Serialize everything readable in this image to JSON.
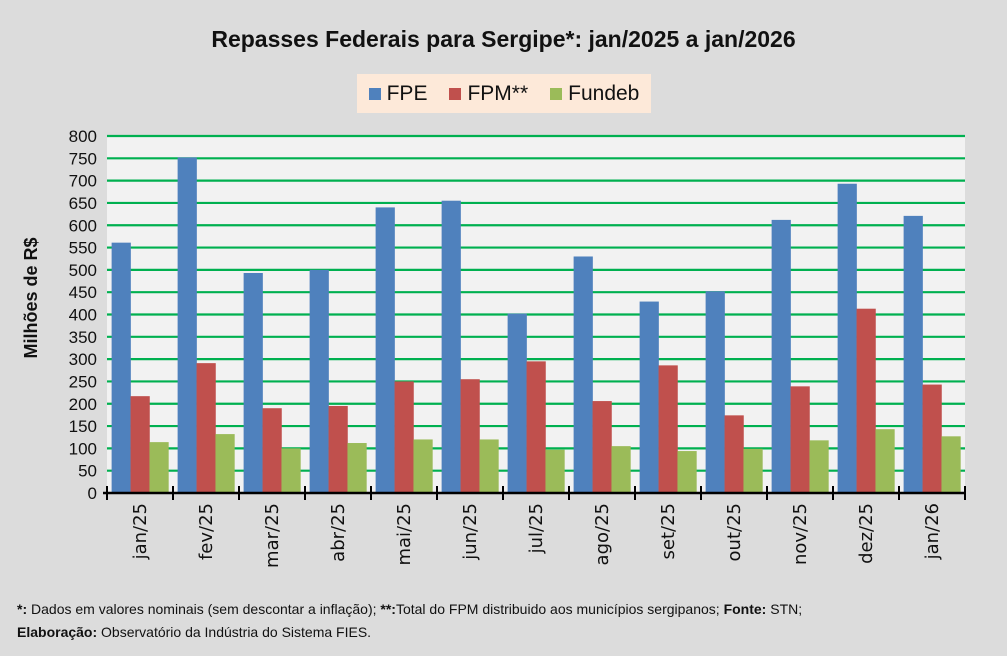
{
  "chart_data": {
    "type": "bar",
    "title": "Repasses Federais para Sergipe*: jan/2025 a jan/2026",
    "xlabel": "",
    "ylabel": "Milhões de R$",
    "ylim": [
      0,
      800
    ],
    "yticks": [
      0,
      50,
      100,
      150,
      200,
      250,
      300,
      350,
      400,
      450,
      500,
      550,
      600,
      650,
      700,
      750,
      800
    ],
    "grid": true,
    "legend_position": "top-center",
    "categories": [
      "jan/25",
      "fev/25",
      "mar/25",
      "abr/25",
      "mai/25",
      "jun/25",
      "jul/25",
      "ago/25",
      "set/25",
      "out/25",
      "nov/25",
      "dez/25",
      "jan/26"
    ],
    "series": [
      {
        "name": "FPE",
        "color": "#4f81bd",
        "values": [
          561,
          752,
          493,
          500,
          640,
          655,
          402,
          530,
          429,
          452,
          612,
          693,
          621
        ]
      },
      {
        "name": "FPM**",
        "color": "#c0504d",
        "values": [
          217,
          291,
          190,
          195,
          250,
          255,
          295,
          206,
          286,
          174,
          239,
          413,
          243
        ]
      },
      {
        "name": "Fundeb",
        "color": "#9bbb59",
        "values": [
          114,
          132,
          100,
          112,
          120,
          120,
          97,
          105,
          94,
          99,
          118,
          143,
          127
        ]
      }
    ]
  },
  "colors": {
    "gridline": "#00b050",
    "plot_background": "#f2f2f2",
    "legend_background": "#fde9d9",
    "page_background": "#dcdcdc"
  },
  "footnote": {
    "line1_k1": "*:",
    "line1_t1": " Dados em valores nominais (sem descontar a inflação); ",
    "line1_k2": "**:",
    "line1_t2": "Total  do FPM distribuido aos municípios sergipanos; ",
    "line1_k3": "Fonte:",
    "line1_t3": " STN;",
    "line2_k1": "Elaboração:",
    "line2_t1": " Observatório da Indústria do Sistema FIES."
  }
}
